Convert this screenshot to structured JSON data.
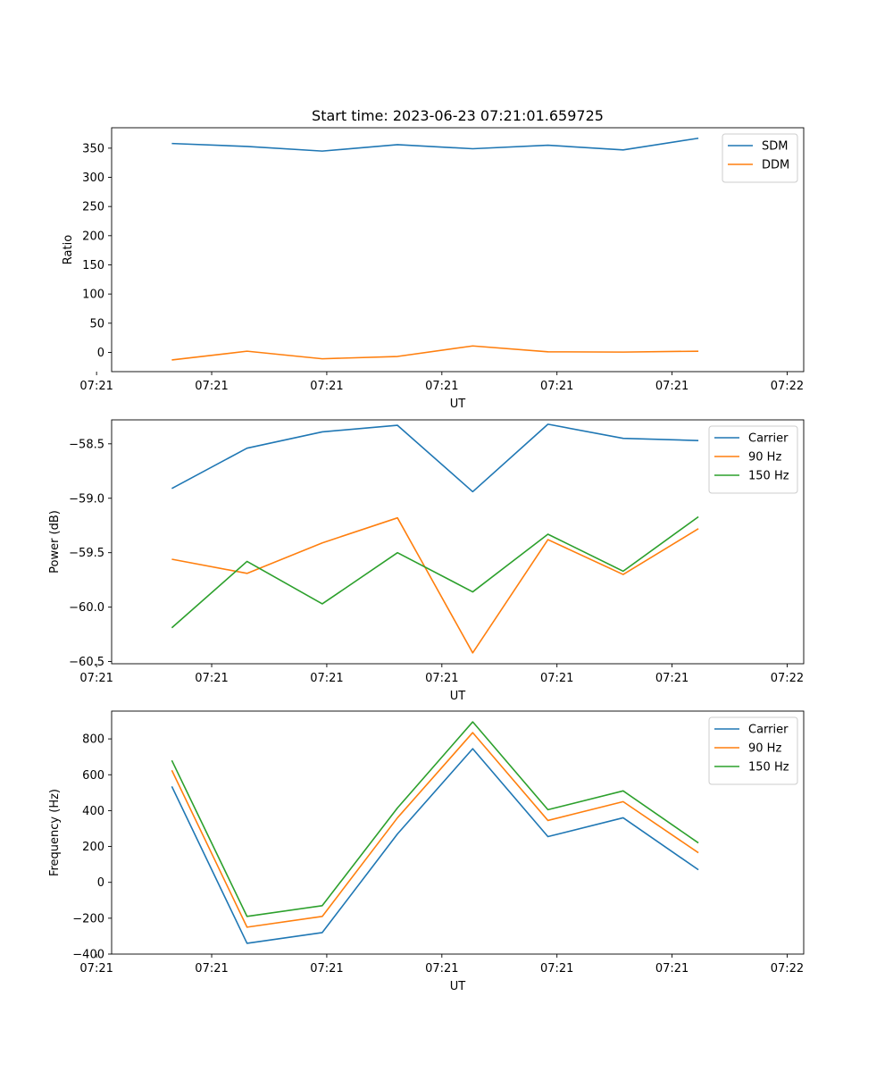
{
  "chart_data": [
    {
      "type": "line",
      "title": "Start time: 2023-06-23 07:21:01.659725",
      "xlabel": "UT",
      "ylabel": "Ratio",
      "x": [
        1,
        2,
        3,
        4,
        5,
        6,
        7,
        8
      ],
      "xlim": [
        0.2,
        9.4
      ],
      "xticks": [
        0,
        1.53,
        3.06,
        4.59,
        6.12,
        7.65,
        9.18
      ],
      "xtick_labels": [
        "07:21",
        "07:21",
        "07:21",
        "07:21",
        "07:21",
        "07:21",
        "07:22"
      ],
      "ylim": [
        -33,
        385
      ],
      "yticks": [
        0,
        50,
        100,
        150,
        200,
        250,
        300,
        350
      ],
      "grid": false,
      "legend": "top-right",
      "series": [
        {
          "name": "SDM",
          "color": "#1f77b4",
          "values": [
            358,
            353,
            345,
            356,
            349,
            355,
            347,
            367
          ]
        },
        {
          "name": "DDM",
          "color": "#ff7f0e",
          "values": [
            -13,
            2,
            -11,
            -7,
            11,
            1,
            0.5,
            2
          ]
        }
      ]
    },
    {
      "type": "line",
      "xlabel": "UT",
      "ylabel": "Power (dB)",
      "x": [
        1,
        2,
        3,
        4,
        5,
        6,
        7,
        8
      ],
      "xlim": [
        0.2,
        9.4
      ],
      "xticks": [
        0,
        1.53,
        3.06,
        4.59,
        6.12,
        7.65,
        9.18
      ],
      "xtick_labels": [
        "07:21",
        "07:21",
        "07:21",
        "07:21",
        "07:21",
        "07:21",
        "07:22"
      ],
      "ylim": [
        -60.52,
        -58.28
      ],
      "yticks": [
        -60.5,
        -60.0,
        -59.5,
        -59.0,
        -58.5
      ],
      "ytick_labels": [
        "−60.5",
        "−60.0",
        "−59.5",
        "−59.0",
        "−58.5"
      ],
      "grid": false,
      "legend": "top-right",
      "series": [
        {
          "name": "Carrier",
          "color": "#1f77b4",
          "values": [
            -58.91,
            -58.54,
            -58.39,
            -58.33,
            -58.94,
            -58.32,
            -58.45,
            -58.47
          ]
        },
        {
          "name": "90 Hz",
          "color": "#ff7f0e",
          "values": [
            -59.56,
            -59.69,
            -59.41,
            -59.18,
            -60.42,
            -59.38,
            -59.7,
            -59.28
          ]
        },
        {
          "name": "150 Hz",
          "color": "#2ca02c",
          "values": [
            -60.19,
            -59.58,
            -59.97,
            -59.5,
            -59.86,
            -59.33,
            -59.67,
            -59.17
          ]
        }
      ]
    },
    {
      "type": "line",
      "xlabel": "UT",
      "ylabel": "Frequency (Hz)",
      "x": [
        1,
        2,
        3,
        4,
        5,
        6,
        7,
        8
      ],
      "xlim": [
        0.2,
        9.4
      ],
      "xticks": [
        0,
        1.53,
        3.06,
        4.59,
        6.12,
        7.65,
        9.18
      ],
      "xtick_labels": [
        "07:21",
        "07:21",
        "07:21",
        "07:21",
        "07:21",
        "07:21",
        "07:22"
      ],
      "ylim": [
        -400,
        955
      ],
      "yticks": [
        -400,
        -200,
        0,
        200,
        400,
        600,
        800
      ],
      "ytick_labels": [
        "−400",
        "−200",
        "0",
        "200",
        "400",
        "600",
        "800"
      ],
      "grid": false,
      "legend": "top-right",
      "series": [
        {
          "name": "Carrier",
          "color": "#1f77b4",
          "values": [
            535,
            -340,
            -280,
            270,
            745,
            255,
            360,
            70
          ]
        },
        {
          "name": "90 Hz",
          "color": "#ff7f0e",
          "values": [
            625,
            -250,
            -190,
            360,
            835,
            345,
            450,
            165
          ]
        },
        {
          "name": "150 Hz",
          "color": "#2ca02c",
          "values": [
            680,
            -190,
            -130,
            415,
            895,
            405,
            510,
            220
          ]
        }
      ]
    }
  ]
}
